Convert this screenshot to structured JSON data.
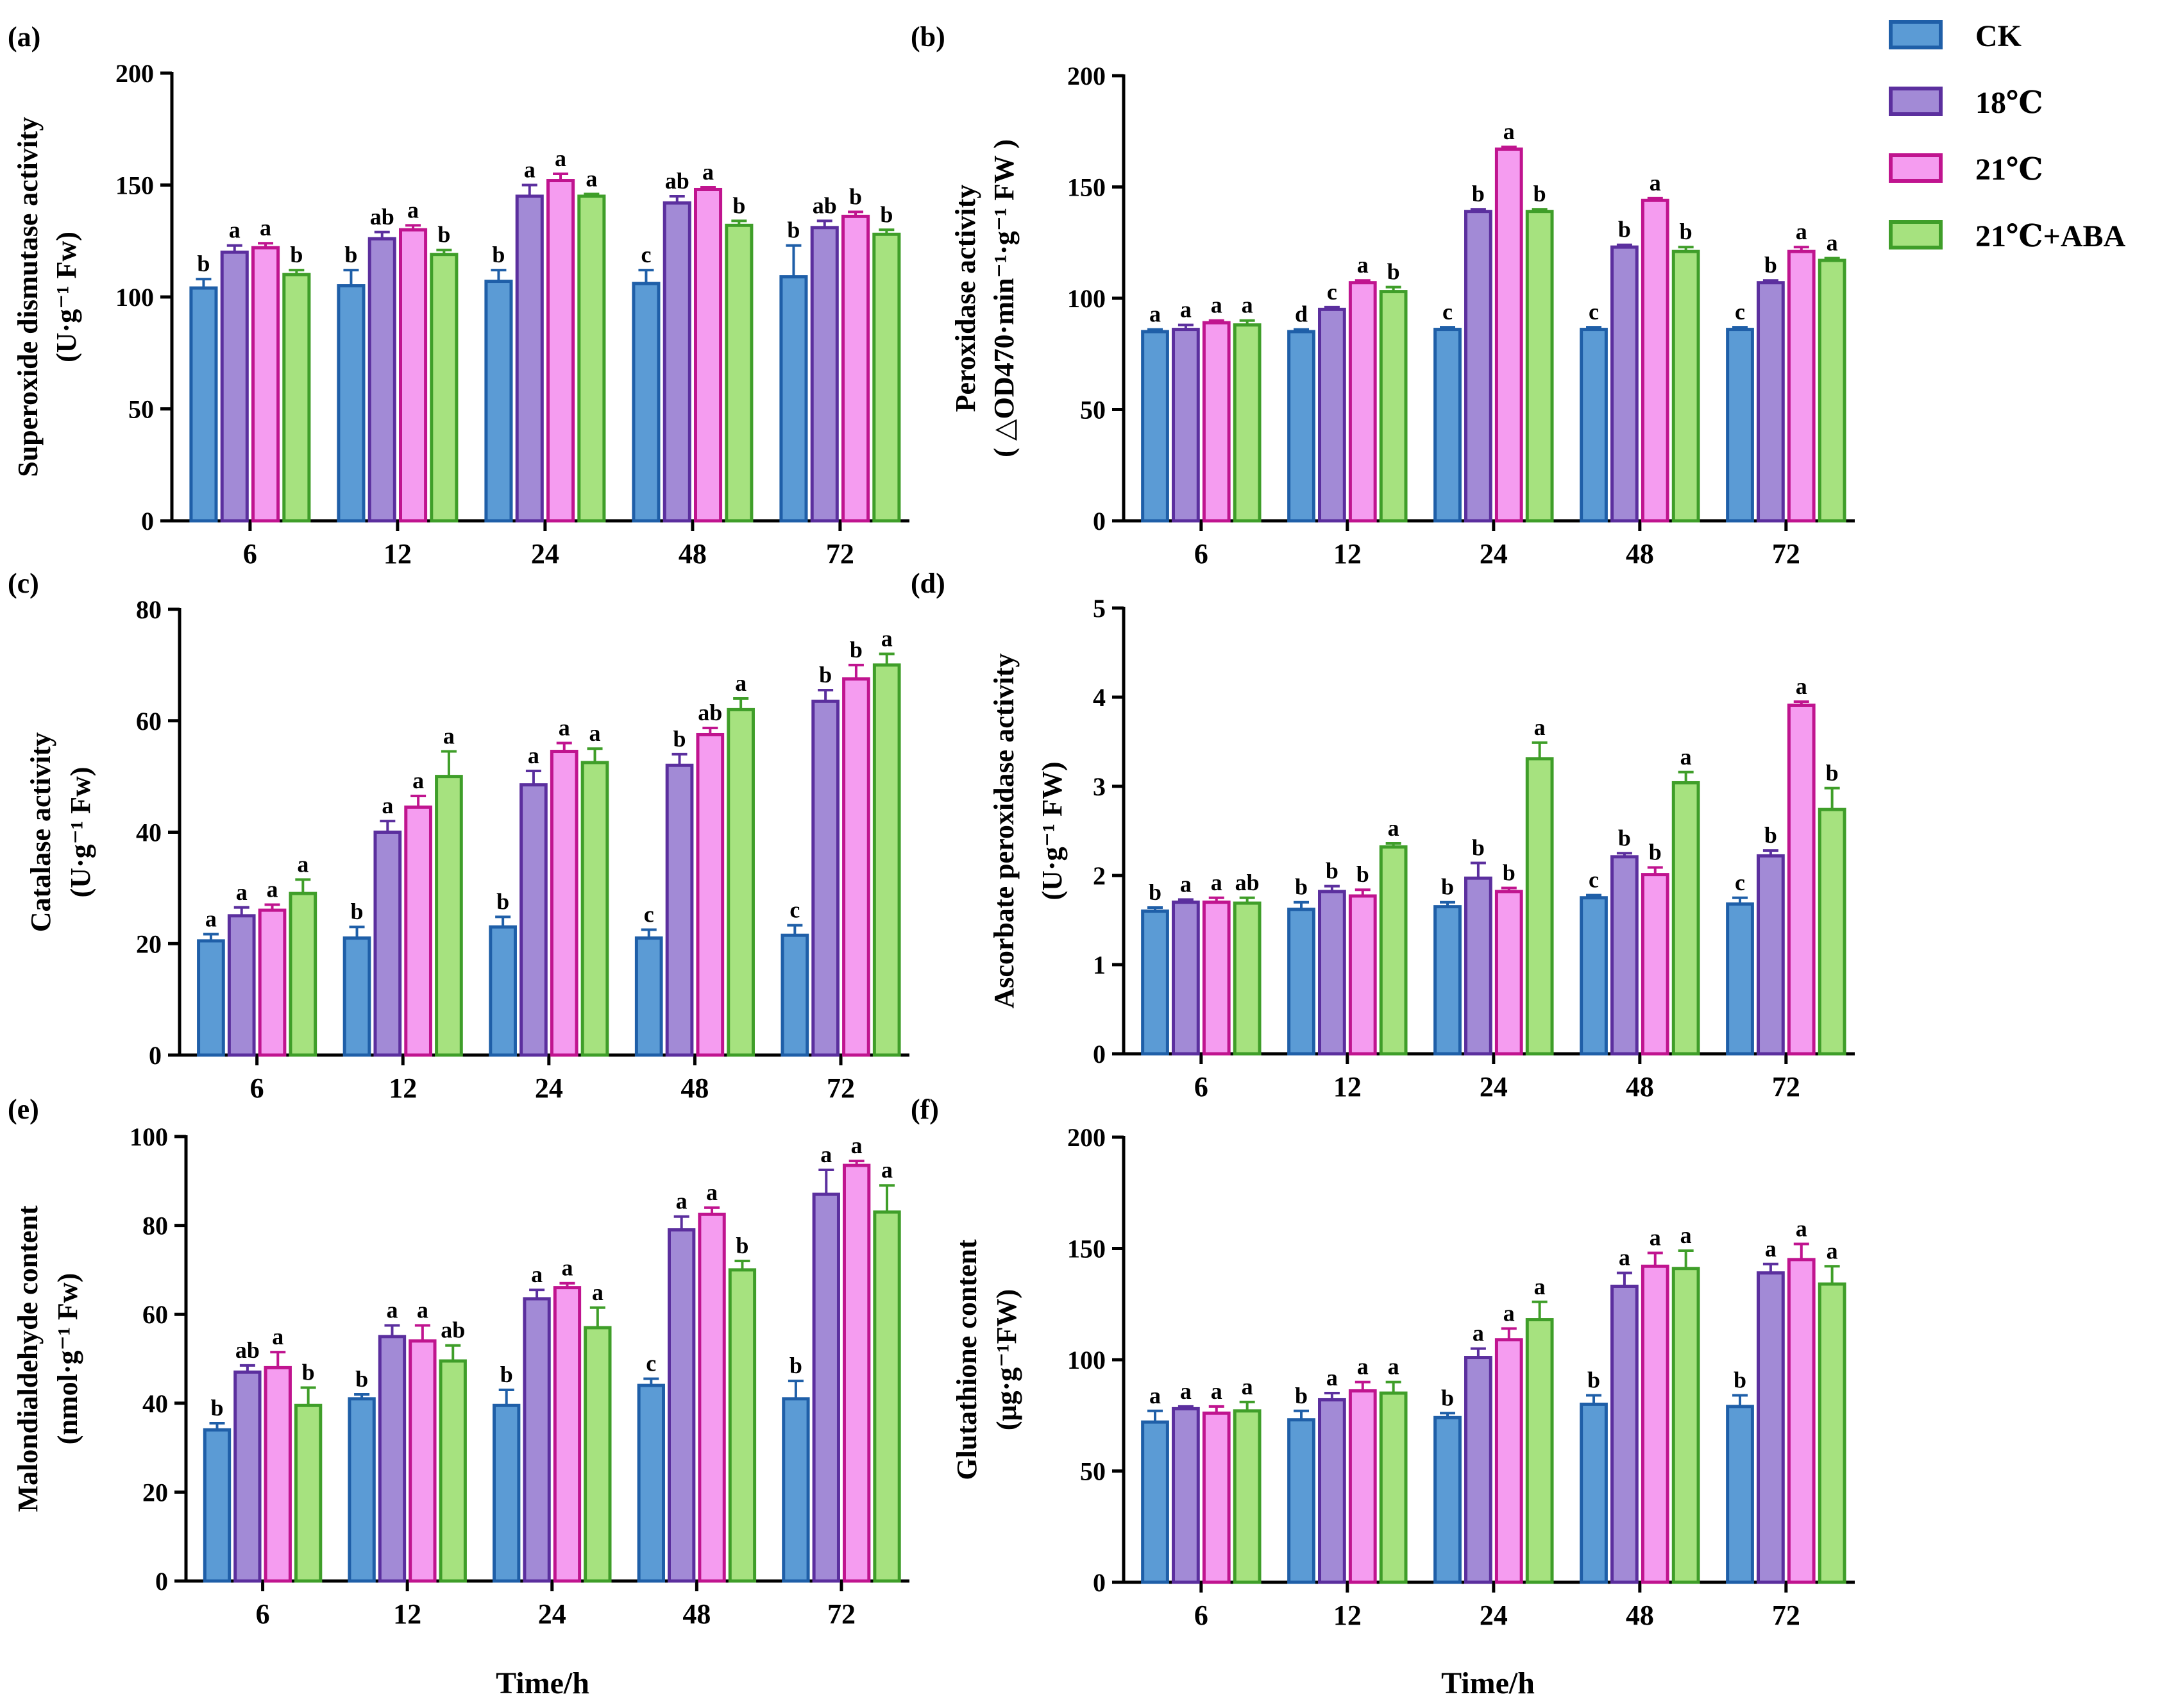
{
  "colors": {
    "CK": {
      "fill": "#5b9bd5",
      "stroke": "#1f5fa8"
    },
    "18C": {
      "fill": "#a28ad6",
      "stroke": "#5b2f9e"
    },
    "21C": {
      "fill": "#f59cf0",
      "stroke": "#c0148f"
    },
    "21C_ABA": {
      "fill": "#a6e27f",
      "stroke": "#3f9e29"
    }
  },
  "legend": [
    {
      "key": "CK",
      "label": "CK"
    },
    {
      "key": "18C",
      "label": "18℃"
    },
    {
      "key": "21C",
      "label": "21℃"
    },
    {
      "key": "21C_ABA",
      "label": "21℃+ABA"
    }
  ],
  "xlabels": [
    "Time/h",
    "Time/h"
  ],
  "chart_data": [
    {
      "type": "bar",
      "panel": "(a)",
      "ylabel_lines": [
        "Superoxide dismutase activity",
        "(U·g⁻¹ Fw)"
      ],
      "ylim": [
        0,
        200
      ],
      "yticks": [
        "0",
        "50",
        "100",
        "150",
        "200"
      ],
      "categories": [
        "6",
        "12",
        "24",
        "48",
        "72"
      ],
      "series": [
        {
          "key": "CK",
          "name": "CK",
          "values": [
            104,
            105,
            107,
            106,
            109
          ],
          "errors": [
            4,
            7,
            5,
            6,
            14
          ],
          "letters": [
            "b",
            "b",
            "b",
            "c",
            "b"
          ]
        },
        {
          "key": "18C",
          "name": "18℃",
          "values": [
            120,
            126,
            145,
            142,
            131
          ],
          "errors": [
            3,
            3,
            5,
            3,
            3
          ],
          "letters": [
            "a",
            "ab",
            "a",
            "ab",
            "ab"
          ]
        },
        {
          "key": "21C",
          "name": "21℃",
          "values": [
            122,
            130,
            152,
            148,
            136
          ],
          "errors": [
            2,
            2,
            3,
            1,
            2
          ],
          "letters": [
            "a",
            "a",
            "a",
            "a",
            "b"
          ]
        },
        {
          "key": "21C_ABA",
          "name": "21℃+ABA",
          "values": [
            110,
            119,
            145,
            132,
            128
          ],
          "errors": [
            2,
            2,
            1,
            2,
            2
          ],
          "letters": [
            "b",
            "b",
            "a",
            "b",
            "b"
          ]
        }
      ]
    },
    {
      "type": "bar",
      "panel": "(b)",
      "ylabel_lines": [
        "Peroxidase activity",
        "( △OD470·min⁻¹·g⁻¹ FW )"
      ],
      "ylim": [
        0,
        200
      ],
      "yticks": [
        "0",
        "50",
        "100",
        "150",
        "200"
      ],
      "categories": [
        "6",
        "12",
        "24",
        "48",
        "72"
      ],
      "series": [
        {
          "key": "CK",
          "name": "CK",
          "values": [
            85,
            85,
            86,
            86,
            86
          ],
          "errors": [
            1,
            1,
            1,
            1,
            1
          ],
          "letters": [
            "a",
            "d",
            "c",
            "c",
            "c"
          ]
        },
        {
          "key": "18C",
          "name": "18℃",
          "values": [
            86,
            95,
            139,
            123,
            107
          ],
          "errors": [
            2,
            1,
            1,
            1,
            1
          ],
          "letters": [
            "a",
            "c",
            "b",
            "b",
            "b"
          ]
        },
        {
          "key": "21C",
          "name": "21℃",
          "values": [
            89,
            107,
            167,
            144,
            121
          ],
          "errors": [
            1,
            1,
            1,
            1,
            2
          ],
          "letters": [
            "a",
            "a",
            "a",
            "a",
            "a"
          ]
        },
        {
          "key": "21C_ABA",
          "name": "21℃+ABA",
          "values": [
            88,
            103,
            139,
            121,
            117
          ],
          "errors": [
            2,
            2,
            1,
            2,
            1
          ],
          "letters": [
            "a",
            "b",
            "b",
            "b",
            "a"
          ]
        }
      ]
    },
    {
      "type": "bar",
      "panel": "(c)",
      "ylabel_lines": [
        "Catalase activity",
        "(U·g⁻¹ Fw)"
      ],
      "ylim": [
        0,
        80
      ],
      "yticks": [
        "0",
        "20",
        "40",
        "60",
        "80"
      ],
      "categories": [
        "6",
        "12",
        "24",
        "48",
        "72"
      ],
      "series": [
        {
          "key": "CK",
          "name": "CK",
          "values": [
            20.5,
            21,
            23,
            21,
            21.5
          ],
          "errors": [
            1.2,
            2,
            1.8,
            1.5,
            1.8
          ],
          "letters": [
            "a",
            "b",
            "b",
            "c",
            "c"
          ]
        },
        {
          "key": "18C",
          "name": "18℃",
          "values": [
            25,
            40,
            48.5,
            52,
            63.5
          ],
          "errors": [
            1.5,
            2,
            2.5,
            2,
            2
          ],
          "letters": [
            "a",
            "a",
            "a",
            "b",
            "b"
          ]
        },
        {
          "key": "21C",
          "name": "21℃",
          "values": [
            26,
            44.5,
            54.5,
            57.5,
            67.5
          ],
          "errors": [
            1,
            2,
            1.5,
            1.2,
            2.5
          ],
          "letters": [
            "a",
            "a",
            "a",
            "ab",
            "b"
          ]
        },
        {
          "key": "21C_ABA",
          "name": "21℃+ABA",
          "values": [
            29,
            50,
            52.5,
            62,
            70
          ],
          "errors": [
            2.5,
            4.5,
            2.5,
            2,
            2
          ],
          "letters": [
            "a",
            "a",
            "a",
            "a",
            "a"
          ]
        }
      ]
    },
    {
      "type": "bar",
      "panel": "(d)",
      "ylabel_lines": [
        "Ascorbate peroxidase activity",
        "(U·g⁻¹  FW)"
      ],
      "ylim": [
        0,
        5
      ],
      "yticks": [
        "0",
        "1",
        "2",
        "3",
        "4",
        "5"
      ],
      "categories": [
        "6",
        "12",
        "24",
        "48",
        "72"
      ],
      "series": [
        {
          "key": "CK",
          "name": "CK",
          "values": [
            1.6,
            1.62,
            1.65,
            1.75,
            1.68
          ],
          "errors": [
            0.04,
            0.08,
            0.05,
            0.03,
            0.07
          ],
          "letters": [
            "b",
            "b",
            "b",
            "c",
            "c"
          ]
        },
        {
          "key": "18C",
          "name": "18℃",
          "values": [
            1.7,
            1.82,
            1.97,
            2.21,
            2.22
          ],
          "errors": [
            0.03,
            0.06,
            0.17,
            0.04,
            0.06
          ],
          "letters": [
            "a",
            "b",
            "b",
            "b",
            "b"
          ]
        },
        {
          "key": "21C",
          "name": "21℃",
          "values": [
            1.7,
            1.77,
            1.82,
            2.01,
            3.91
          ],
          "errors": [
            0.05,
            0.07,
            0.04,
            0.08,
            0.04
          ],
          "letters": [
            "a",
            "b",
            "b",
            "b",
            "a"
          ]
        },
        {
          "key": "21C_ABA",
          "name": "21℃+ABA",
          "values": [
            1.69,
            2.32,
            3.31,
            3.04,
            2.74
          ],
          "errors": [
            0.06,
            0.04,
            0.18,
            0.12,
            0.24
          ],
          "letters": [
            "ab",
            "a",
            "a",
            "a",
            "b"
          ]
        }
      ]
    },
    {
      "type": "bar",
      "panel": "(e)",
      "ylabel_lines": [
        "Malondialdehyde content",
        "(nmol·g⁻¹ Fw)"
      ],
      "ylim": [
        0,
        100
      ],
      "yticks": [
        "0",
        "20",
        "40",
        "60",
        "80",
        "100"
      ],
      "categories": [
        "6",
        "12",
        "24",
        "48",
        "72"
      ],
      "series": [
        {
          "key": "CK",
          "name": "CK",
          "values": [
            34,
            41,
            39.5,
            44,
            41
          ],
          "errors": [
            1.5,
            1,
            3.5,
            1.5,
            4
          ],
          "letters": [
            "b",
            "b",
            "b",
            "c",
            "b"
          ]
        },
        {
          "key": "18C",
          "name": "18℃",
          "values": [
            47,
            55,
            63.5,
            79,
            87
          ],
          "errors": [
            1.5,
            2.5,
            2,
            3,
            5.5
          ],
          "letters": [
            "ab",
            "a",
            "a",
            "a",
            "a"
          ]
        },
        {
          "key": "21C",
          "name": "21℃",
          "values": [
            48,
            54,
            66,
            82.5,
            93.5
          ],
          "errors": [
            3.5,
            3.5,
            1,
            1.5,
            1
          ],
          "letters": [
            "a",
            "a",
            "a",
            "a",
            "a"
          ]
        },
        {
          "key": "21C_ABA",
          "name": "21℃+ABA",
          "values": [
            39.5,
            49.5,
            57,
            70,
            83
          ],
          "errors": [
            4,
            3.5,
            4.5,
            2,
            6
          ],
          "letters": [
            "b",
            "ab",
            "a",
            "b",
            "a"
          ]
        }
      ]
    },
    {
      "type": "bar",
      "panel": "(f)",
      "ylabel_lines": [
        "Glutathione content",
        "(μg·g⁻¹FW)"
      ],
      "ylim": [
        0,
        200
      ],
      "yticks": [
        "0",
        "50",
        "100",
        "150",
        "200"
      ],
      "categories": [
        "6",
        "12",
        "24",
        "48",
        "72"
      ],
      "series": [
        {
          "key": "CK",
          "name": "CK",
          "values": [
            72,
            73,
            74,
            80,
            79
          ],
          "errors": [
            5,
            4,
            2,
            4,
            5
          ],
          "letters": [
            "a",
            "b",
            "b",
            "b",
            "b"
          ]
        },
        {
          "key": "18C",
          "name": "18℃",
          "values": [
            78,
            82,
            101,
            133,
            139
          ],
          "errors": [
            1,
            3,
            4,
            6,
            4
          ],
          "letters": [
            "a",
            "a",
            "a",
            "a",
            "a"
          ]
        },
        {
          "key": "21C",
          "name": "21℃",
          "values": [
            76,
            86,
            109,
            142,
            145
          ],
          "errors": [
            3,
            4,
            5,
            6,
            7
          ],
          "letters": [
            "a",
            "a",
            "a",
            "a",
            "a"
          ]
        },
        {
          "key": "21C_ABA",
          "name": "21℃+ABA",
          "values": [
            77,
            85,
            118,
            141,
            134
          ],
          "errors": [
            4,
            5,
            8,
            8,
            8
          ],
          "letters": [
            "a",
            "a",
            "a",
            "a",
            "a"
          ]
        }
      ]
    }
  ]
}
